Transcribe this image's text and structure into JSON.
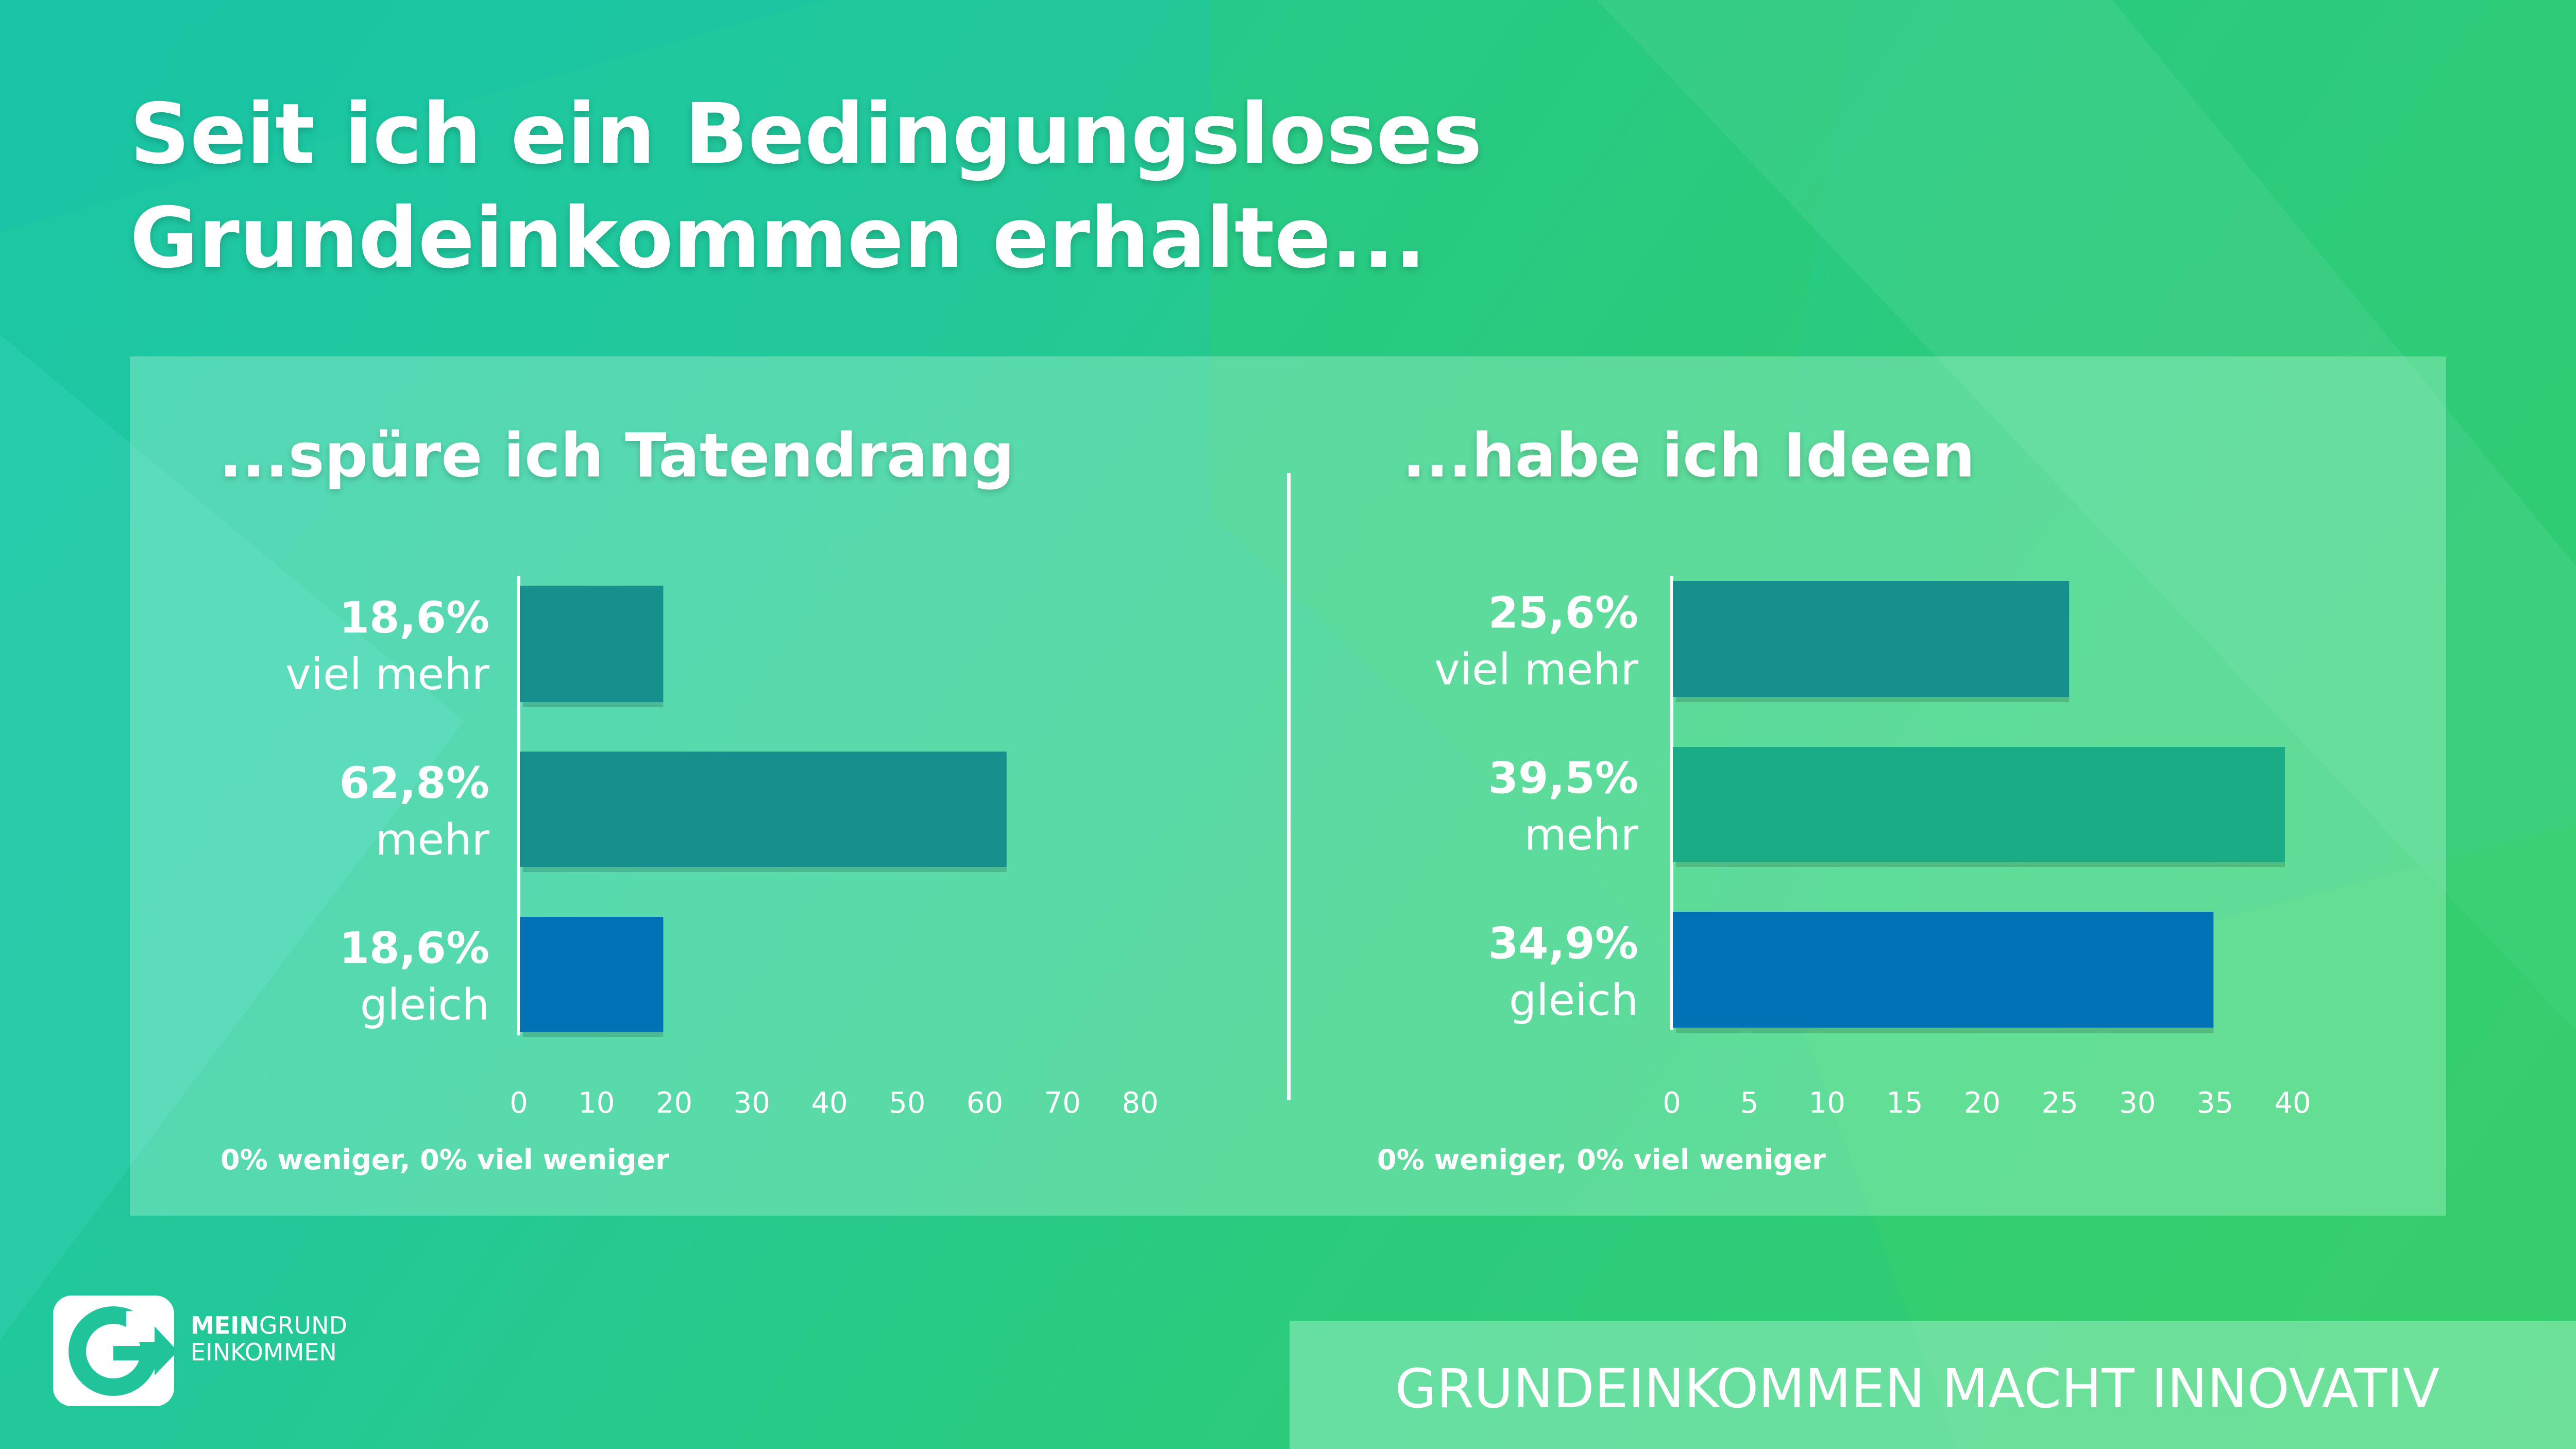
{
  "title": "Seit ich ein Bedingungsloses Grundeinkommen erhalte...",
  "colors": {
    "teal": "#15908c",
    "green": "#1aad85",
    "blue": "#0272b7"
  },
  "chart_data": [
    {
      "type": "bar",
      "orientation": "horizontal",
      "title": "...spüre ich Tatendrang",
      "categories": [
        "viel mehr",
        "mehr",
        "gleich"
      ],
      "values": [
        18.6,
        62.8,
        18.6
      ],
      "value_labels": [
        "18,6%",
        "62,8%",
        "18,6%"
      ],
      "bar_colors": [
        "#15908c",
        "#15908c",
        "#0272b7"
      ],
      "xlim": [
        0,
        80
      ],
      "xticks": [
        0,
        10,
        20,
        30,
        40,
        50,
        60,
        70,
        80
      ],
      "footnote": "0% weniger, 0% viel weniger"
    },
    {
      "type": "bar",
      "orientation": "horizontal",
      "title": "...habe ich Ideen",
      "categories": [
        "viel mehr",
        "mehr",
        "gleich"
      ],
      "values": [
        25.6,
        39.5,
        34.9
      ],
      "value_labels": [
        "25,6%",
        "39,5%",
        "34,9%"
      ],
      "bar_colors": [
        "#15908c",
        "#1aad85",
        "#0272b7"
      ],
      "xlim": [
        0,
        40
      ],
      "xticks": [
        0,
        5,
        10,
        15,
        20,
        25,
        30,
        35,
        40
      ],
      "footnote": "0% weniger, 0% viel weniger"
    }
  ],
  "logo": {
    "line1_bold": "MEIN",
    "line1_rest": "GRUND",
    "line2": "EINKOMMEN"
  },
  "tagline": "GRUNDEINKOMMEN MACHT INNOVATIV"
}
